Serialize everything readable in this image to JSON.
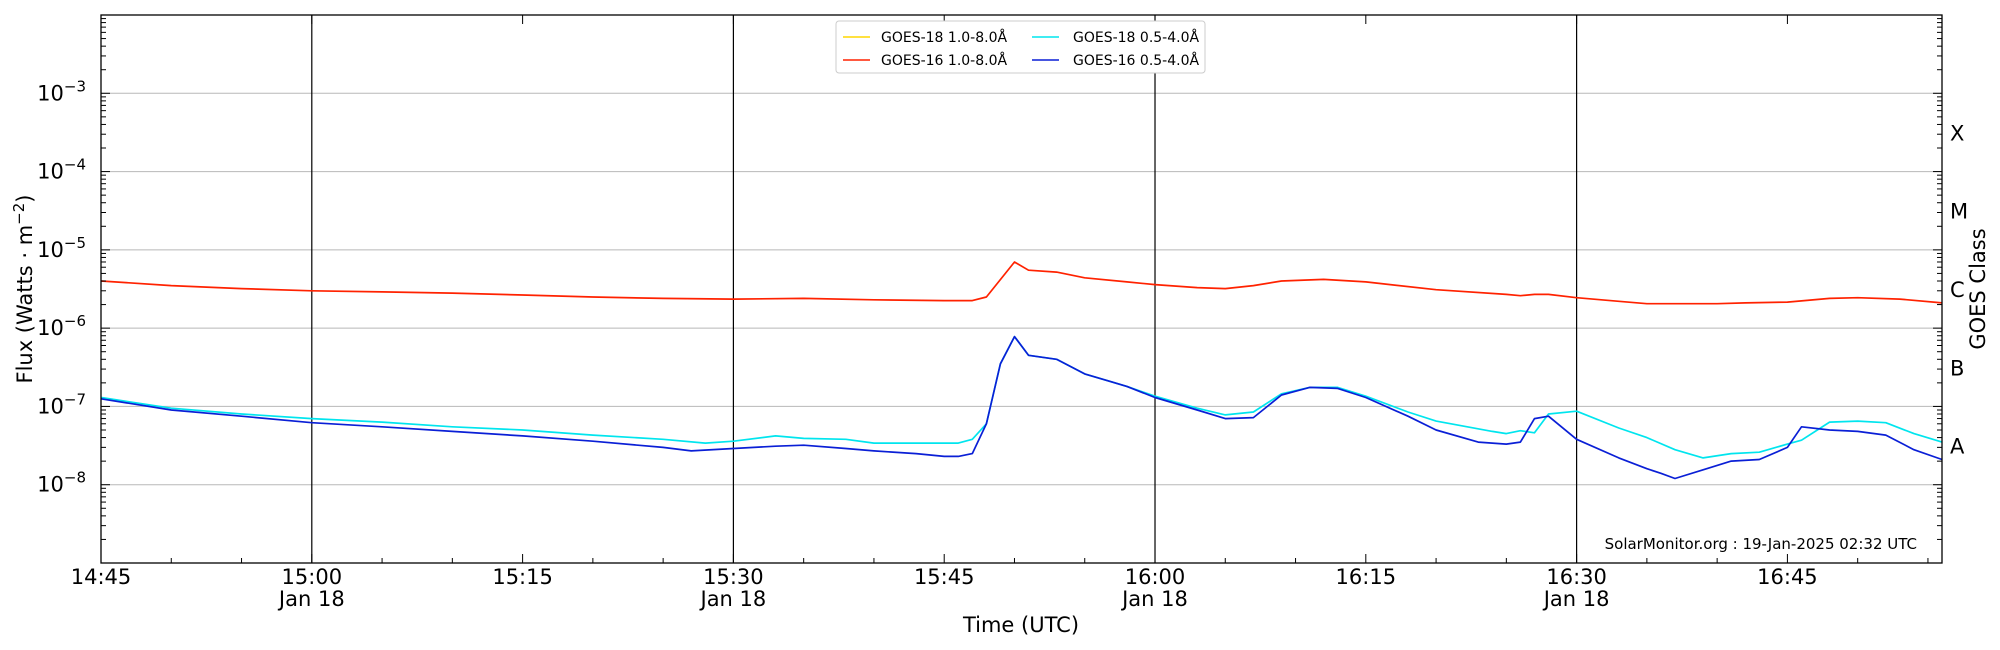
{
  "chart_data": {
    "type": "line",
    "xlabel": "Time (UTC)",
    "ylabel": "Flux (Watts · m",
    "ylabel_sup": "−2",
    "ylabel_close": ")",
    "right_ylabel": "GOES Class",
    "credit": "SolarMonitor.org : 19-Jan-2025 02:32 UTC",
    "y_scale": "log",
    "ylim": [
      1e-09,
      0.01
    ],
    "xlim": [
      "14:45",
      "16:56"
    ],
    "grid": "horizontal major",
    "legend_position": "top-center",
    "x_ticks": [
      {
        "time": "14:45",
        "label": "14:45",
        "sub": ""
      },
      {
        "time": "15:00",
        "label": "15:00",
        "sub": "Jan 18"
      },
      {
        "time": "15:15",
        "label": "15:15",
        "sub": ""
      },
      {
        "time": "15:30",
        "label": "15:30",
        "sub": "Jan 18"
      },
      {
        "time": "15:45",
        "label": "15:45",
        "sub": ""
      },
      {
        "time": "16:00",
        "label": "16:00",
        "sub": "Jan 18"
      },
      {
        "time": "16:15",
        "label": "16:15",
        "sub": ""
      },
      {
        "time": "16:30",
        "label": "16:30",
        "sub": "Jan 18"
      },
      {
        "time": "16:45",
        "label": "16:45",
        "sub": ""
      }
    ],
    "vertical_lines": [
      "15:00",
      "15:30",
      "16:00",
      "16:30"
    ],
    "y_ticks": [
      {
        "value": 1e-08,
        "base": "10",
        "exp": "−8"
      },
      {
        "value": 1e-07,
        "base": "10",
        "exp": "−7"
      },
      {
        "value": 1e-06,
        "base": "10",
        "exp": "−6"
      },
      {
        "value": 1e-05,
        "base": "10",
        "exp": "−5"
      },
      {
        "value": 0.0001,
        "base": "10",
        "exp": "−4"
      },
      {
        "value": 0.001,
        "base": "10",
        "exp": "−3"
      }
    ],
    "goes_classes": [
      {
        "label": "A",
        "value": 1e-08
      },
      {
        "label": "B",
        "value": 1e-07
      },
      {
        "label": "C",
        "value": 1e-06
      },
      {
        "label": "M",
        "value": 1e-05
      },
      {
        "label": "X",
        "value": 0.0001
      }
    ],
    "series": [
      {
        "name": "GOES-18 1.0-8.0Å",
        "color": "#ffd700",
        "x": [],
        "y": []
      },
      {
        "name": "GOES-16 1.0-8.0Å",
        "color": "#ff2200",
        "x": [
          "14:45",
          "14:50",
          "14:55",
          "15:00",
          "15:05",
          "15:10",
          "15:15",
          "15:20",
          "15:25",
          "15:30",
          "15:35",
          "15:40",
          "15:45",
          "15:47",
          "15:48",
          "15:50",
          "15:51",
          "15:53",
          "15:55",
          "15:58",
          "16:00",
          "16:03",
          "16:05",
          "16:07",
          "16:09",
          "16:12",
          "16:15",
          "16:20",
          "16:25",
          "16:26",
          "16:27",
          "16:28",
          "16:30",
          "16:33",
          "16:35",
          "16:40",
          "16:42",
          "16:45",
          "16:48",
          "16:50",
          "16:53",
          "16:56"
        ],
        "y": [
          4e-06,
          3.5e-06,
          3.2e-06,
          3e-06,
          2.9e-06,
          2.8e-06,
          2.65e-06,
          2.5e-06,
          2.4e-06,
          2.35e-06,
          2.4e-06,
          2.3e-06,
          2.25e-06,
          2.25e-06,
          2.5e-06,
          7e-06,
          5.5e-06,
          5.2e-06,
          4.4e-06,
          3.9e-06,
          3.6e-06,
          3.3e-06,
          3.2e-06,
          3.5e-06,
          4e-06,
          4.2e-06,
          3.9e-06,
          3.1e-06,
          2.7e-06,
          2.6e-06,
          2.7e-06,
          2.7e-06,
          2.45e-06,
          2.2e-06,
          2.05e-06,
          2.05e-06,
          2.1e-06,
          2.15e-06,
          2.4e-06,
          2.45e-06,
          2.35e-06,
          2.1e-06
        ]
      },
      {
        "name": "GOES-18 0.5-4.0Å",
        "color": "#00e5ee",
        "x": [
          "14:45",
          "14:50",
          "14:55",
          "15:00",
          "15:05",
          "15:10",
          "15:15",
          "15:20",
          "15:25",
          "15:28",
          "15:30",
          "15:33",
          "15:35",
          "15:38",
          "15:40",
          "15:43",
          "15:46",
          "15:47",
          "15:48",
          "15:49",
          "15:50",
          "15:51",
          "15:53",
          "15:55",
          "15:58",
          "16:00",
          "16:03",
          "16:05",
          "16:07",
          "16:09",
          "16:11",
          "16:13",
          "16:15",
          "16:18",
          "16:20",
          "16:24",
          "16:25",
          "16:26",
          "16:27",
          "16:28",
          "16:30",
          "16:33",
          "16:35",
          "16:37",
          "16:39",
          "16:41",
          "16:43",
          "16:45",
          "16:46",
          "16:48",
          "16:50",
          "16:52",
          "16:54",
          "16:56"
        ],
        "y": [
          1.3e-07,
          9.5e-08,
          8e-08,
          7e-08,
          6.3e-08,
          5.5e-08,
          5e-08,
          4.3e-08,
          3.8e-08,
          3.4e-08,
          3.6e-08,
          4.2e-08,
          3.9e-08,
          3.8e-08,
          3.4e-08,
          3.4e-08,
          3.4e-08,
          3.8e-08,
          6e-08,
          3.5e-07,
          7.8e-07,
          4.5e-07,
          4e-07,
          2.6e-07,
          1.8e-07,
          1.35e-07,
          9.5e-08,
          7.8e-08,
          8.5e-08,
          1.45e-07,
          1.75e-07,
          1.75e-07,
          1.35e-07,
          8.5e-08,
          6.5e-08,
          4.8e-08,
          4.5e-08,
          4.9e-08,
          4.6e-08,
          8e-08,
          8.7e-08,
          5.3e-08,
          4e-08,
          2.8e-08,
          2.2e-08,
          2.5e-08,
          2.6e-08,
          3.3e-08,
          3.7e-08,
          6.3e-08,
          6.5e-08,
          6.2e-08,
          4.5e-08,
          3.5e-08
        ]
      },
      {
        "name": "GOES-16 0.5-4.0Å",
        "color": "#0a1fd6",
        "x": [
          "14:45",
          "14:50",
          "14:55",
          "15:00",
          "15:05",
          "15:10",
          "15:15",
          "15:20",
          "15:25",
          "15:27",
          "15:30",
          "15:33",
          "15:35",
          "15:38",
          "15:40",
          "15:43",
          "15:45",
          "15:46",
          "15:47",
          "15:48",
          "15:49",
          "15:50",
          "15:51",
          "15:53",
          "15:55",
          "15:58",
          "16:00",
          "16:03",
          "16:05",
          "16:07",
          "16:09",
          "16:11",
          "16:13",
          "16:15",
          "16:18",
          "16:20",
          "16:23",
          "16:25",
          "16:26",
          "16:27",
          "16:28",
          "16:30",
          "16:33",
          "16:35",
          "16:36",
          "16:37",
          "16:39",
          "16:41",
          "16:43",
          "16:45",
          "16:46",
          "16:48",
          "16:50",
          "16:52",
          "16:54",
          "16:56"
        ],
        "y": [
          1.25e-07,
          9e-08,
          7.5e-08,
          6.2e-08,
          5.5e-08,
          4.8e-08,
          4.2e-08,
          3.6e-08,
          3e-08,
          2.7e-08,
          2.9e-08,
          3.1e-08,
          3.2e-08,
          2.9e-08,
          2.7e-08,
          2.5e-08,
          2.3e-08,
          2.3e-08,
          2.5e-08,
          6e-08,
          3.5e-07,
          7.8e-07,
          4.5e-07,
          4e-07,
          2.6e-07,
          1.8e-07,
          1.3e-07,
          9e-08,
          7e-08,
          7.2e-08,
          1.4e-07,
          1.75e-07,
          1.7e-07,
          1.3e-07,
          7.5e-08,
          5e-08,
          3.5e-08,
          3.3e-08,
          3.5e-08,
          7e-08,
          7.5e-08,
          3.8e-08,
          2.2e-08,
          1.6e-08,
          1.4e-08,
          1.2e-08,
          1.55e-08,
          2e-08,
          2.1e-08,
          3e-08,
          5.5e-08,
          5e-08,
          4.8e-08,
          4.3e-08,
          2.8e-08,
          2.1e-08
        ]
      }
    ]
  }
}
